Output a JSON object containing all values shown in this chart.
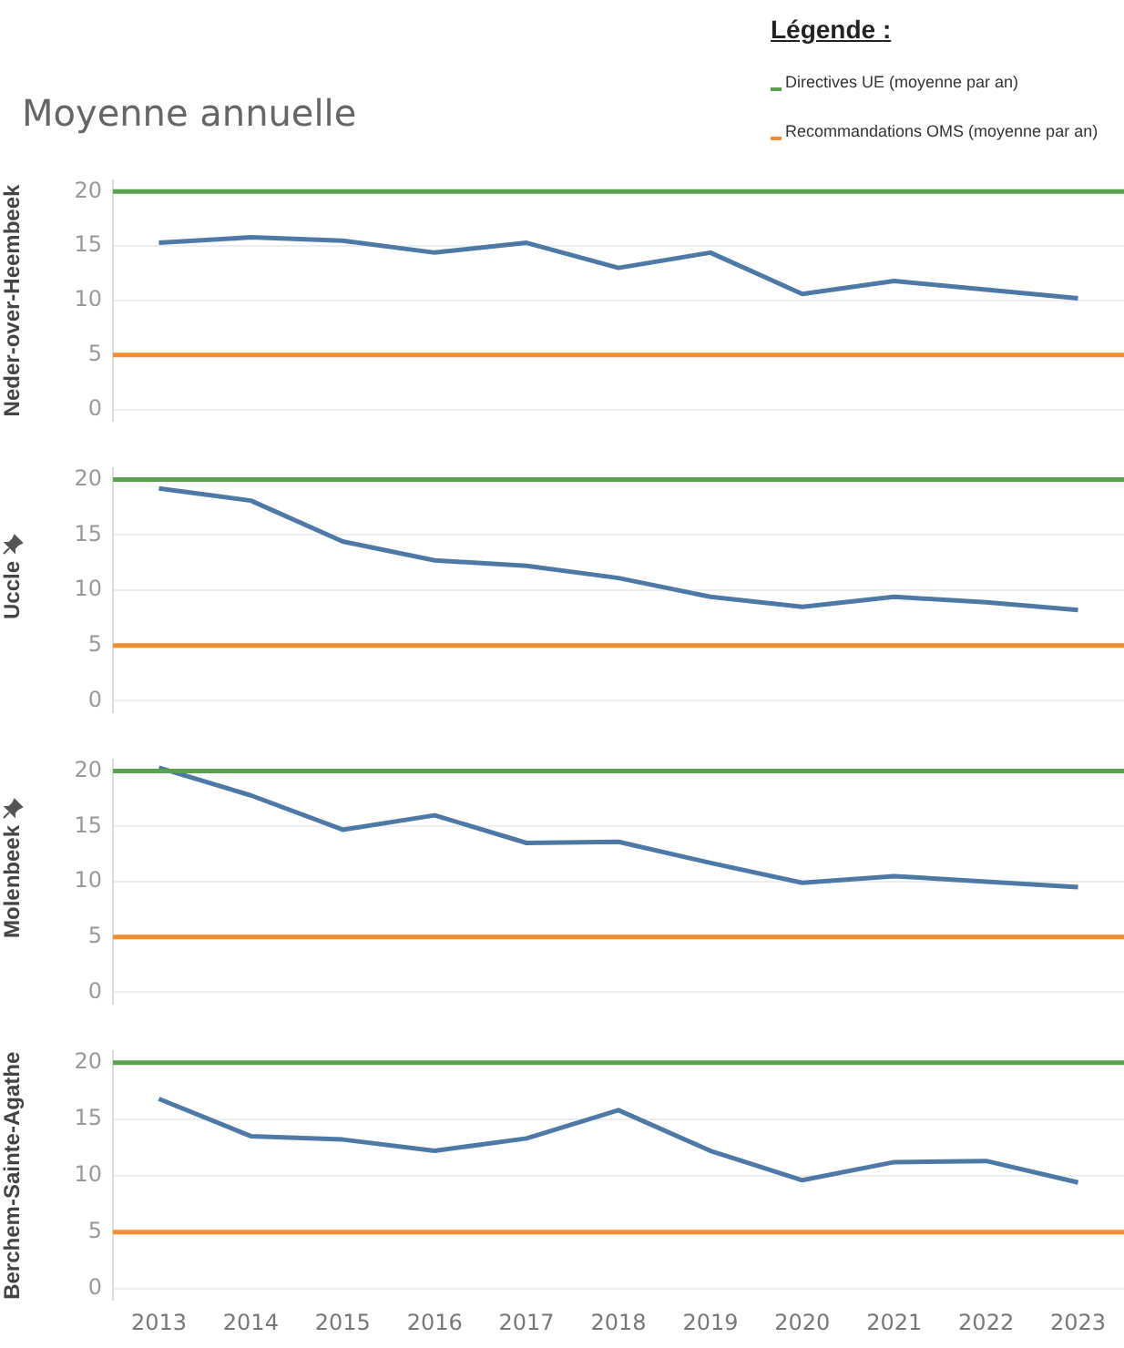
{
  "chart_data": [
    {
      "type": "line",
      "title": "Moyenne annuelle",
      "legend_title": "Légende :",
      "legend": "top right",
      "ylabel": "Neder-over-Heembeek",
      "categories": [
        "2013",
        "2014",
        "2015",
        "2016",
        "2017",
        "2018",
        "2019",
        "2020",
        "2021",
        "2022",
        "2023"
      ],
      "series": [
        {
          "color": "#4e79a7",
          "values": [
            15.3,
            15.8,
            15.5,
            14.4,
            15.3,
            13.0,
            14.4,
            10.6,
            11.8,
            11.0,
            10.2
          ]
        }
      ],
      "ylim": [
        -1,
        21
      ],
      "yticks": [
        0,
        5,
        10,
        15,
        20
      ],
      "grid": "y",
      "tick_labels": "y",
      "marker": "none",
      "line_style": "solid",
      "ref_lines": [
        {
          "axis": "y",
          "value": 20,
          "label": "Directives UE (moyenne par an)",
          "color": "#59a14f"
        },
        {
          "axis": "y",
          "value": 5,
          "label": "Recommandations OMS (moyenne par an)",
          "color": "#f28e2b"
        }
      ]
    },
    {
      "type": "line",
      "ylabel": "Uccle",
      "categories": [
        "2013",
        "2014",
        "2015",
        "2016",
        "2017",
        "2018",
        "2019",
        "2020",
        "2021",
        "2022",
        "2023"
      ],
      "series": [
        {
          "color": "#4e79a7",
          "values": [
            19.2,
            18.1,
            14.4,
            12.7,
            12.2,
            11.1,
            9.4,
            8.5,
            9.4,
            8.9,
            8.2
          ]
        }
      ],
      "ylim": [
        -1,
        21
      ],
      "yticks": [
        0,
        5,
        10,
        15,
        20
      ],
      "grid": "y",
      "tick_labels": "y",
      "marker": "none",
      "line_style": "solid",
      "ref_lines": [
        {
          "axis": "y",
          "value": 20,
          "color": "#59a14f"
        },
        {
          "axis": "y",
          "value": 5,
          "color": "#f28e2b"
        }
      ]
    },
    {
      "type": "line",
      "ylabel": "Molenbeek",
      "categories": [
        "2013",
        "2014",
        "2015",
        "2016",
        "2017",
        "2018",
        "2019",
        "2020",
        "2021",
        "2022",
        "2023"
      ],
      "series": [
        {
          "color": "#4e79a7",
          "values": [
            20.3,
            17.8,
            14.7,
            16.0,
            13.5,
            13.6,
            11.7,
            9.9,
            10.5,
            10.0,
            9.5
          ]
        }
      ],
      "ylim": [
        -1,
        21
      ],
      "yticks": [
        0,
        5,
        10,
        15,
        20
      ],
      "grid": "y",
      "tick_labels": "y",
      "marker": "none",
      "line_style": "solid",
      "ref_lines": [
        {
          "axis": "y",
          "value": 20,
          "color": "#59a14f"
        },
        {
          "axis": "y",
          "value": 5,
          "color": "#f28e2b"
        }
      ]
    },
    {
      "type": "line",
      "ylabel": "Berchem-Sainte-Agathe",
      "categories": [
        "2013",
        "2014",
        "2015",
        "2016",
        "2017",
        "2018",
        "2019",
        "2020",
        "2021",
        "2022",
        "2023"
      ],
      "series": [
        {
          "color": "#4e79a7",
          "values": [
            16.8,
            13.5,
            13.2,
            12.2,
            13.3,
            15.8,
            12.2,
            9.6,
            11.2,
            11.3,
            9.4
          ]
        }
      ],
      "ylim": [
        -1,
        21
      ],
      "yticks": [
        0,
        5,
        10,
        15,
        20
      ],
      "grid": "y",
      "marker": "none",
      "line_style": "solid",
      "ref_lines": [
        {
          "axis": "y",
          "value": 20,
          "color": "#59a14f"
        },
        {
          "axis": "y",
          "value": 5,
          "color": "#f28e2b"
        }
      ]
    }
  ]
}
